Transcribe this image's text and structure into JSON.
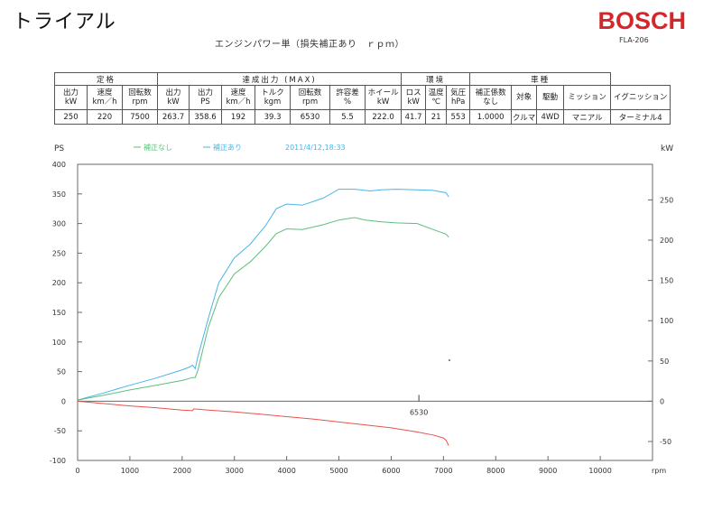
{
  "header": {
    "title": "トライアル",
    "brand": "BOSCH",
    "model": "FLA-206",
    "subtitle": "エンジンパワー単（損失補正あり　ｒｐｍ）"
  },
  "table": {
    "groups": [
      {
        "label": "定格",
        "span": 3
      },
      {
        "label": "達成出力 (MAX)",
        "span": 7
      },
      {
        "label": "環境",
        "span": 3
      },
      {
        "label": "車種",
        "span": 4
      }
    ],
    "headers": [
      [
        "出力",
        "kW"
      ],
      [
        "速度",
        "km／h"
      ],
      [
        "回転数",
        "rpm"
      ],
      [
        "出力",
        "kW"
      ],
      [
        "出力",
        "PS"
      ],
      [
        "速度",
        "km／h"
      ],
      [
        "トルク",
        "kgm"
      ],
      [
        "回転数",
        "rpm"
      ],
      [
        "許容差",
        "%"
      ],
      [
        "ホイール",
        "kW"
      ],
      [
        "ロス",
        "kW"
      ],
      [
        "温度",
        "℃"
      ],
      [
        "気圧",
        "hPa"
      ],
      [
        "補正係数",
        "なし"
      ],
      [
        "対象",
        ""
      ],
      [
        "駆動",
        ""
      ],
      [
        "ミッション",
        ""
      ],
      [
        "イグニッション",
        ""
      ]
    ],
    "values": [
      "250",
      "220",
      "7500",
      "263.7",
      "358.6",
      "192",
      "39.3",
      "6530",
      "5.5",
      "222.0",
      "41.7",
      "21",
      "553",
      "1.0000",
      "クルマ",
      "4WD",
      "マニアル",
      "ターミナル4"
    ]
  },
  "chart_data": {
    "type": "line",
    "xlabel": "rpm",
    "ylabel_left": "PS",
    "ylabel_right": "kW",
    "xlim": [
      0,
      11000
    ],
    "ylim_left": [
      -100,
      400
    ],
    "ylim_right": [
      -73.5,
      294.2
    ],
    "x_ticks": [
      0,
      1000,
      2000,
      3000,
      4000,
      5000,
      6000,
      7000,
      8000,
      9000,
      10000
    ],
    "y_ticks_left": [
      -100,
      -50,
      0,
      50,
      100,
      150,
      200,
      250,
      300,
      350,
      400
    ],
    "y_ticks_right": [
      -50,
      0,
      50,
      100,
      150,
      200,
      250
    ],
    "legend": [
      {
        "label": "補正なし",
        "color": "#5dbf7d"
      },
      {
        "label": "補正あり",
        "color": "#48b6e6"
      }
    ],
    "timestamp": "2011/4/12,18:33",
    "marker": {
      "x": 6530,
      "label": "6530"
    },
    "colors": {
      "corrected": "#48b6e6",
      "uncorrected": "#5dbf7d",
      "loss": "#e8534b",
      "frame": "#6a6a6a"
    },
    "series": [
      {
        "name": "補正あり",
        "color": "#48b6e6",
        "x": [
          0,
          500,
          1000,
          1500,
          2000,
          2150,
          2200,
          2250,
          2300,
          2500,
          2700,
          3000,
          3300,
          3600,
          3800,
          4000,
          4300,
          4700,
          5000,
          5300,
          5600,
          5800,
          6100,
          6500,
          6800,
          7050,
          7100
        ],
        "y": [
          2,
          14,
          27,
          39,
          53,
          58,
          61,
          55,
          75,
          140,
          200,
          242,
          265,
          297,
          325,
          333,
          331,
          343,
          358,
          358,
          355,
          357,
          358,
          357,
          356,
          352,
          345
        ]
      },
      {
        "name": "補正なし",
        "color": "#5dbf7d",
        "x": [
          0,
          500,
          1000,
          1500,
          2000,
          2200,
          2250,
          2300,
          2500,
          2700,
          3000,
          3300,
          3600,
          3800,
          4000,
          4300,
          4700,
          5000,
          5300,
          5500,
          5800,
          6100,
          6500,
          6800,
          7050,
          7100
        ],
        "y": [
          2,
          10,
          19,
          27,
          35,
          40,
          40,
          52,
          125,
          175,
          215,
          235,
          262,
          283,
          291,
          290,
          298,
          306,
          310,
          306,
          303,
          301,
          300,
          290,
          282,
          277
        ]
      },
      {
        "name": "ロス",
        "color": "#e8534b",
        "x": [
          0,
          500,
          1000,
          1500,
          2000,
          2200,
          2220,
          2500,
          3000,
          3500,
          4000,
          4500,
          5000,
          5500,
          6000,
          6500,
          6800,
          7000,
          7050,
          7100
        ],
        "y": [
          0,
          -4,
          -8,
          -11,
          -15,
          -16,
          -13,
          -15,
          -18,
          -22,
          -26,
          -30,
          -35,
          -40,
          -45,
          -52,
          -57,
          -62,
          -66,
          -75
        ]
      }
    ]
  }
}
